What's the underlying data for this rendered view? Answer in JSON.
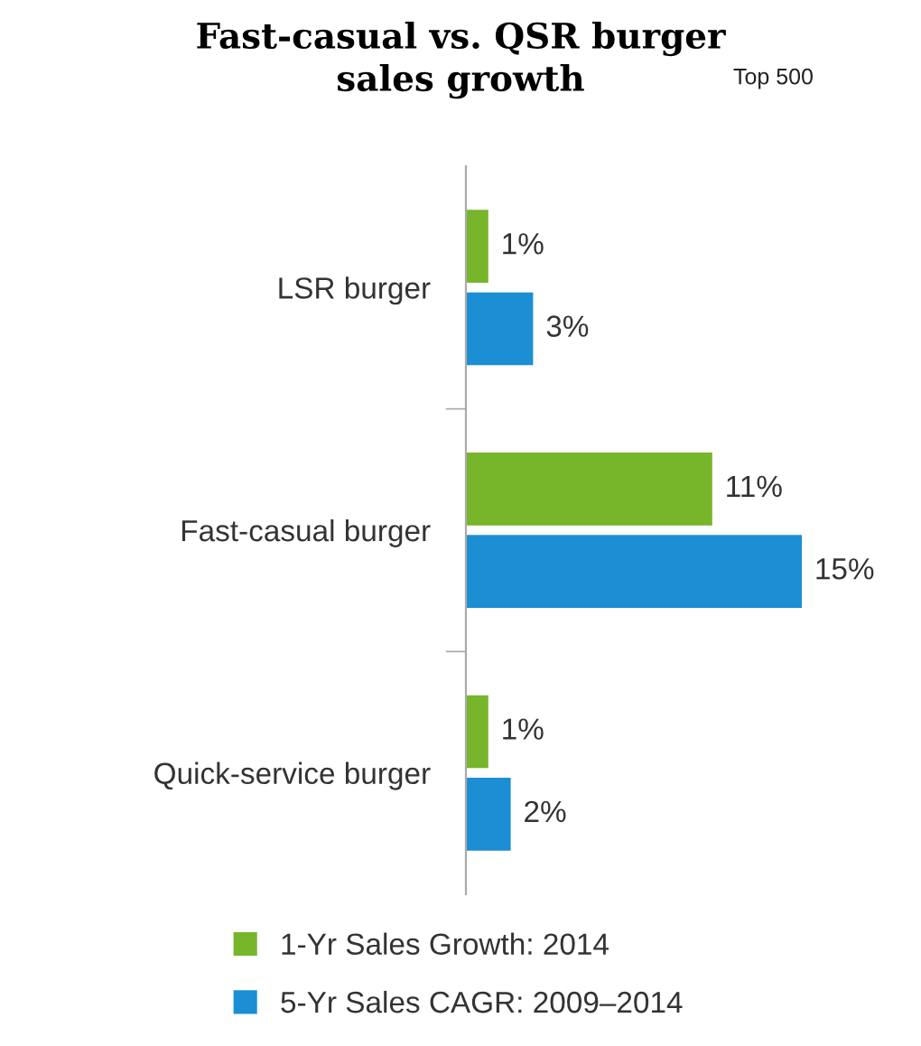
{
  "chart_data": {
    "type": "bar",
    "orientation": "horizontal",
    "title": "Fast-casual vs. QSR burger\nsales growth",
    "subtitle": "Top 500",
    "categories": [
      "LSR burger",
      "Fast-casual burger",
      "Quick-service burger"
    ],
    "series": [
      {
        "name": "1-Yr Sales Growth: 2014",
        "color": "#77b52a",
        "values": [
          1,
          11,
          1
        ],
        "value_labels": [
          "1%",
          "11%",
          "1%"
        ]
      },
      {
        "name": "5-Yr Sales CAGR: 2009–2014",
        "color": "#1b8ed4",
        "values": [
          3,
          15,
          2
        ],
        "value_labels": [
          "3%",
          "15%",
          "2%"
        ]
      }
    ],
    "tick_labels": "y",
    "grid": false,
    "legend": "bottom"
  }
}
